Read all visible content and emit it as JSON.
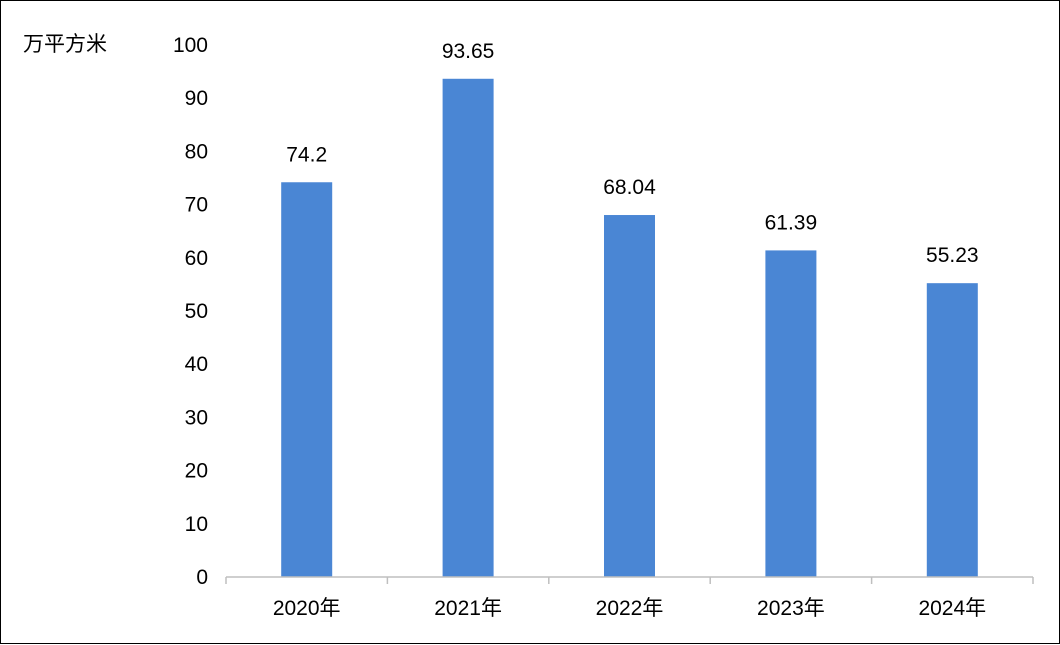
{
  "chart_data": {
    "type": "bar",
    "ylabel": "万平方米",
    "categories": [
      "2020年",
      "2021年",
      "2022年",
      "2023年",
      "2024年"
    ],
    "values": [
      74.2,
      93.65,
      68.04,
      61.39,
      55.23
    ],
    "data_labels": [
      "74.2",
      "93.65",
      "68.04",
      "61.39",
      "55.23"
    ],
    "ylim": [
      0,
      100
    ],
    "yticks": [
      "0",
      "10",
      "20",
      "30",
      "40",
      "50",
      "60",
      "70",
      "80",
      "90",
      "100"
    ],
    "grid": false,
    "legend": "none",
    "bar_color": "#4a86d4",
    "axis_color": "#bfbfbf"
  }
}
